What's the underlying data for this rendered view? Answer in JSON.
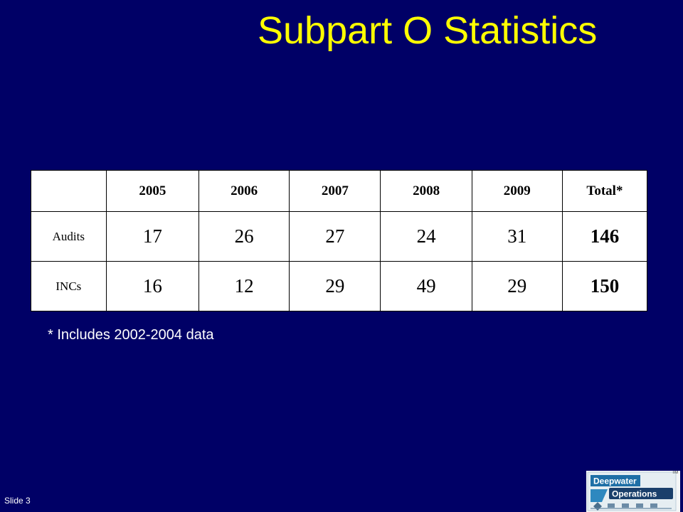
{
  "slide": {
    "title": "Subpart O Statistics",
    "footnote": "* Includes 2002-2004 data",
    "slide_number": "Slide 3"
  },
  "table": {
    "headers": [
      "",
      "2005",
      "2006",
      "2007",
      "2008",
      "2009",
      "Total*"
    ],
    "rows": [
      {
        "label": "Audits",
        "values": [
          "17",
          "26",
          "27",
          "24",
          "31"
        ],
        "total": "146"
      },
      {
        "label": "INCs",
        "values": [
          "16",
          "12",
          "29",
          "49",
          "29"
        ],
        "total": "150"
      }
    ]
  },
  "logo": {
    "line1": "Deepwater",
    "line2": "Operations",
    "tm": "TM"
  },
  "colors": {
    "background": "#000066",
    "title": "#ffff00",
    "text": "#ffffff",
    "table_bg": "#ffffff"
  }
}
